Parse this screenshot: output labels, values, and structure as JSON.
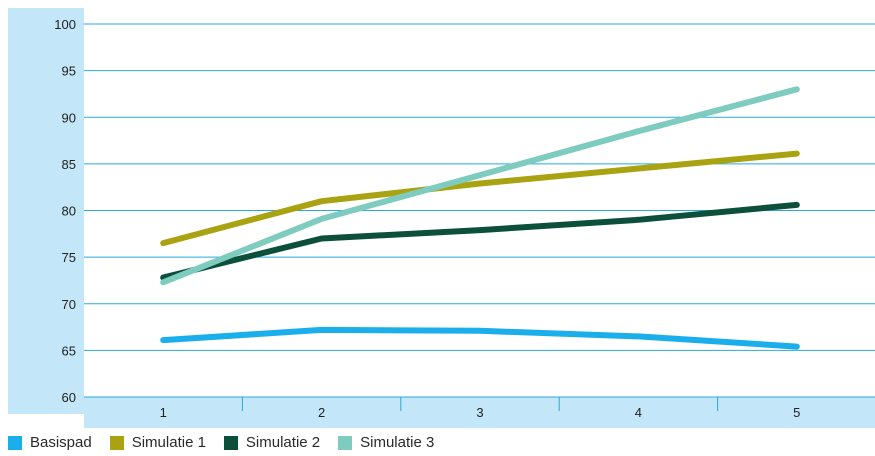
{
  "chart_data": {
    "type": "line",
    "title": "",
    "xlabel": "",
    "ylabel": "",
    "categories": [
      "1",
      "2",
      "3",
      "4",
      "5"
    ],
    "ylim": [
      60,
      100
    ],
    "yticks": [
      60,
      65,
      70,
      75,
      80,
      85,
      90,
      95,
      100
    ],
    "grid": true,
    "legend_position": "bottom-left",
    "colors": {
      "axis_band": "#c3e6f8",
      "grid": "#29a9e1",
      "background": "#ffffff"
    },
    "series": [
      {
        "name": "Basispad",
        "color": "#1aaeea",
        "values": [
          66.1,
          67.2,
          67.1,
          66.5,
          65.4
        ]
      },
      {
        "name": "Simulatie 1",
        "color": "#a9a312",
        "values": [
          76.5,
          81.0,
          82.9,
          84.5,
          86.1
        ]
      },
      {
        "name": "Simulatie 2",
        "color": "#0c4f3b",
        "values": [
          72.8,
          77.0,
          77.9,
          79.0,
          80.6
        ]
      },
      {
        "name": "Simulatie 3",
        "color": "#7ecbbf",
        "values": [
          72.3,
          79.1,
          83.8,
          88.5,
          93.0
        ]
      }
    ]
  }
}
